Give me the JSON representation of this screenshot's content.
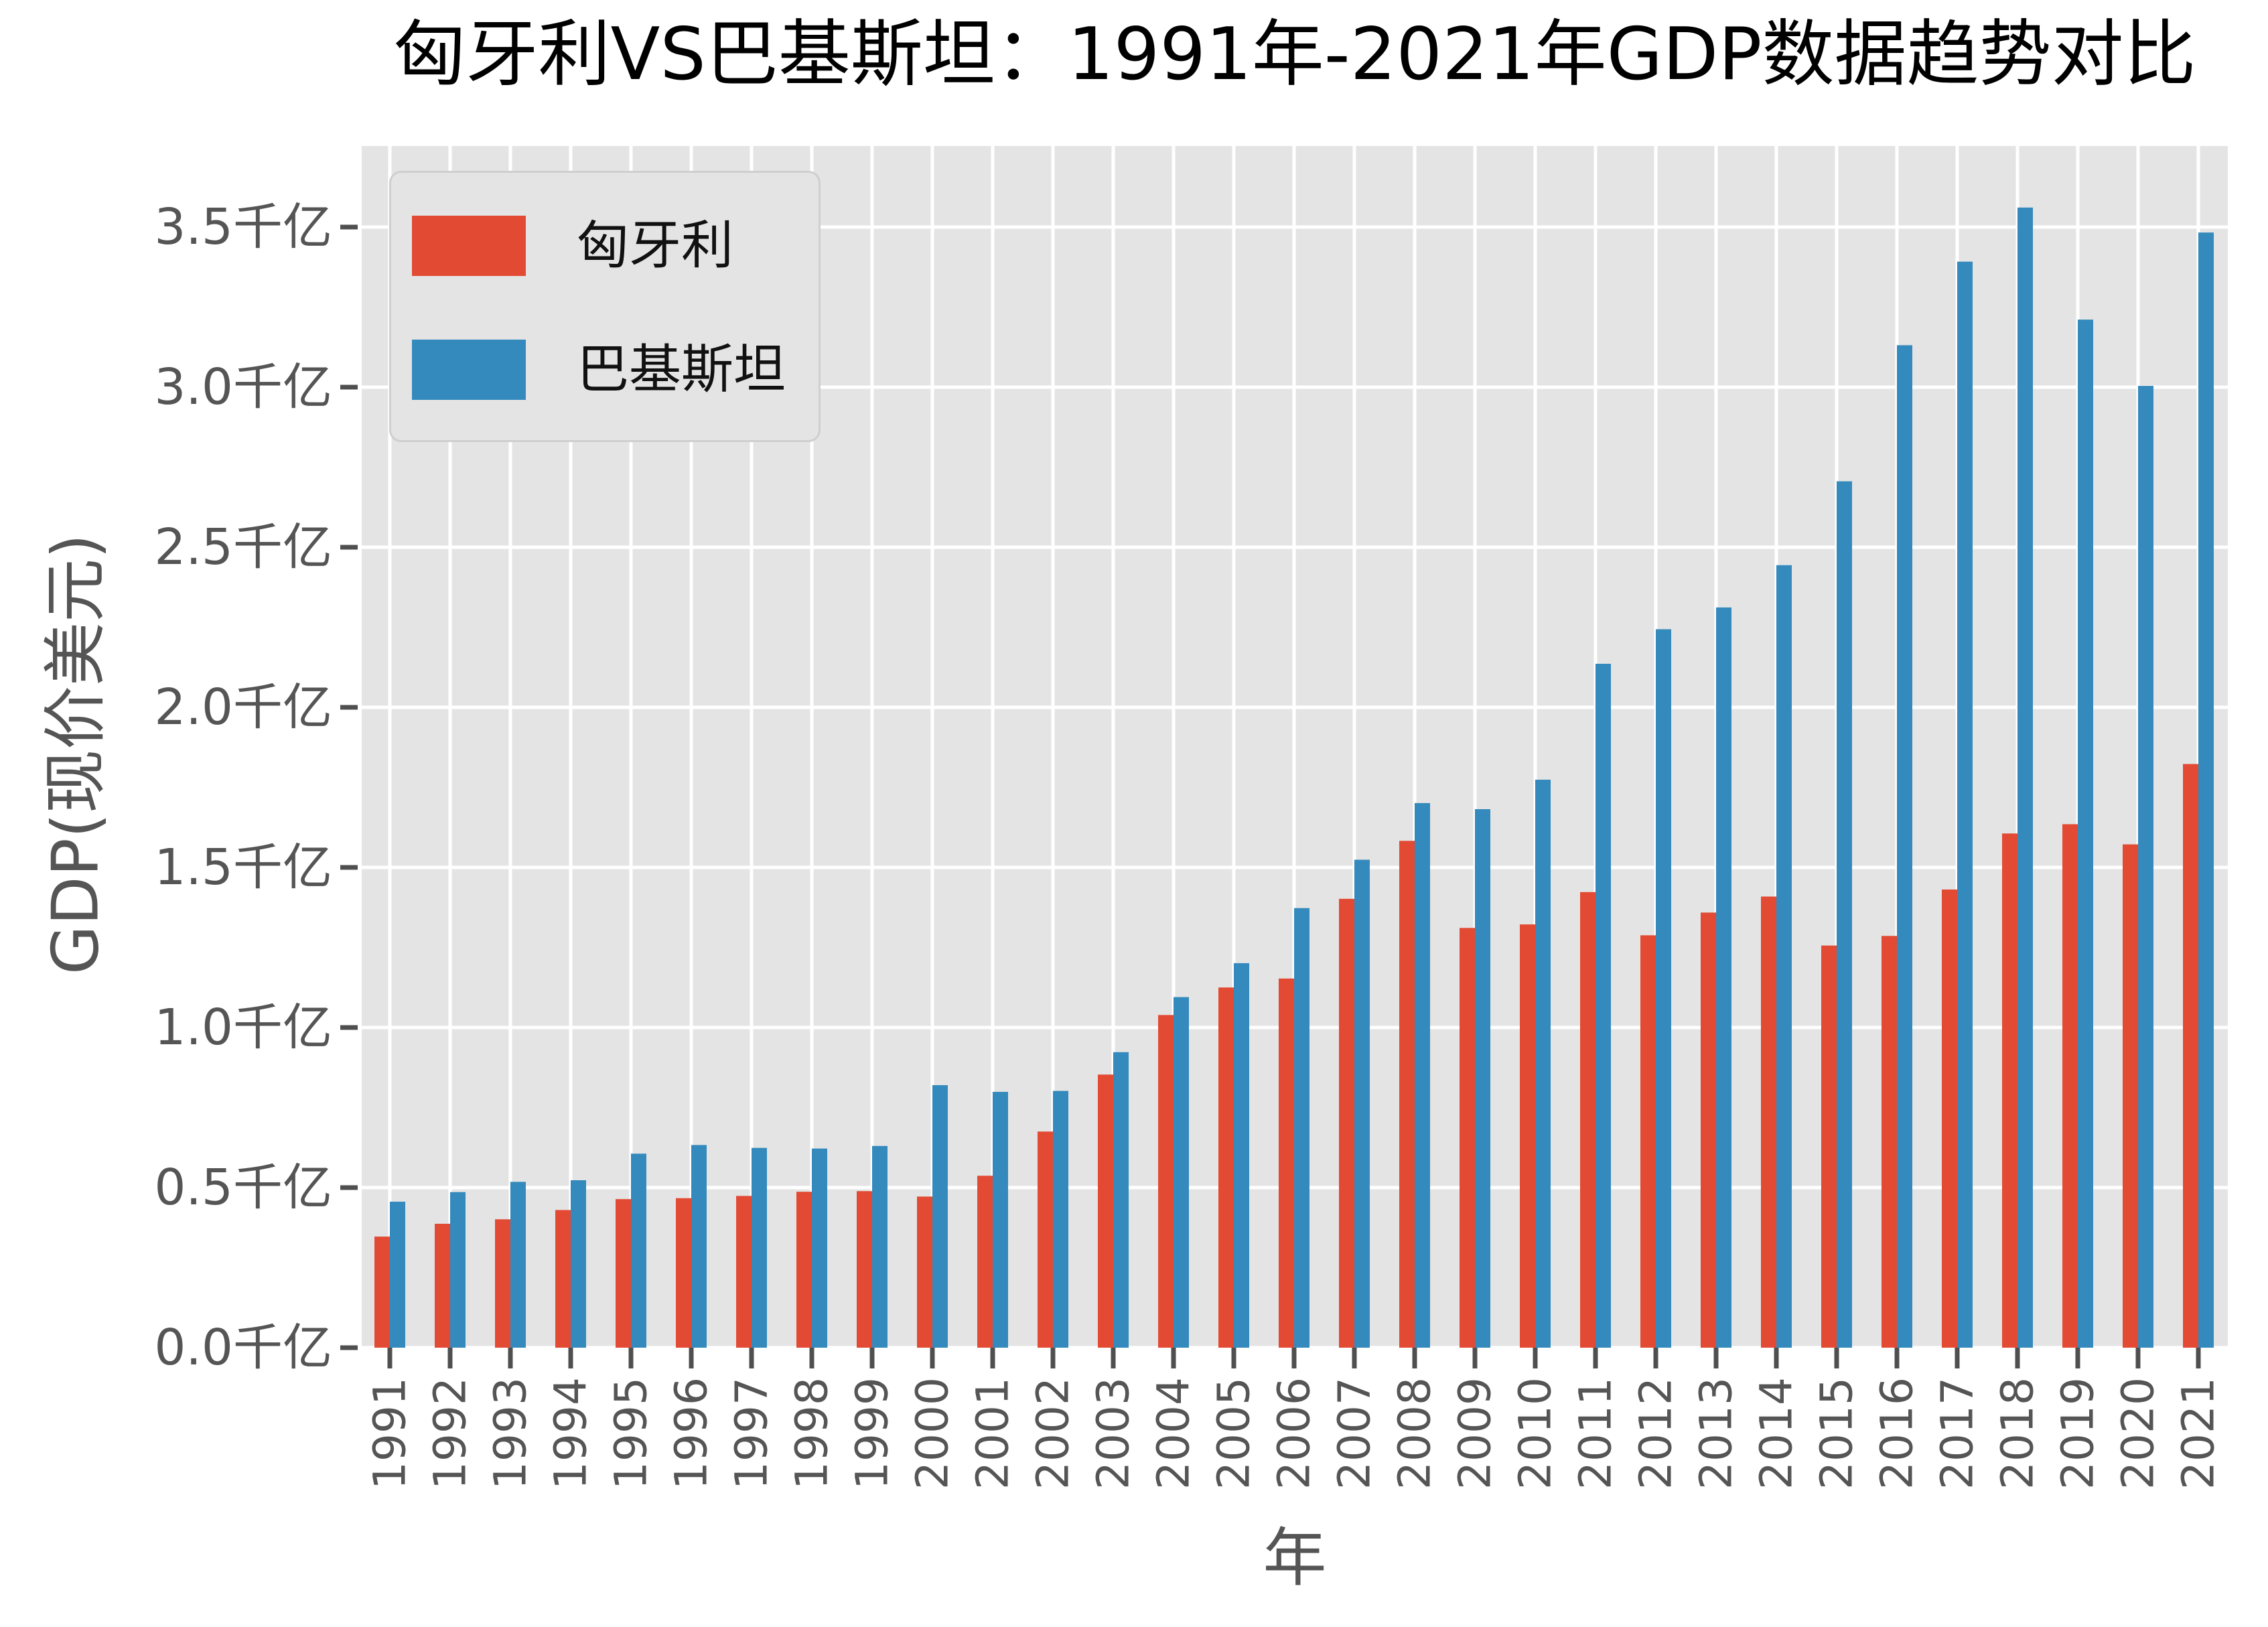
{
  "title": "匈牙利VS巴基斯坦：1991年-2021年GDP数据趋势对比",
  "axes": {
    "x_label": "年",
    "y_label": "GDP(现价美元)"
  },
  "legend": {
    "items": [
      {
        "key": "hungary",
        "label": "匈牙利",
        "color": "#E24A33"
      },
      {
        "key": "pakistan",
        "label": "巴基斯坦",
        "color": "#348ABD"
      }
    ]
  },
  "colors": {
    "plot_background": "#E4E4E4",
    "grid": "#FFFFFF",
    "tick_mark": "#4F4F4F",
    "tick_text": "#555555",
    "hungary_red": "#E24A33",
    "pakistan_blue": "#348ABD"
  },
  "chart_data": {
    "type": "bar",
    "title": "匈牙利VS巴基斯坦：1991年-2021年GDP数据趋势对比",
    "xlabel": "年",
    "ylabel": "GDP(现价美元)",
    "unit": "千亿 (现价美元)",
    "grid": true,
    "legend_position": "upper left",
    "ylim": [
      0,
      3.76
    ],
    "y_ticks": [
      0,
      0.5,
      1.0,
      1.5,
      2.0,
      2.5,
      3.0,
      3.5
    ],
    "y_tick_labels": [
      "0.0千亿",
      "0.5千亿",
      "1.0千亿",
      "1.5千亿",
      "2.0千亿",
      "2.5千亿",
      "3.0千亿",
      "3.5千亿"
    ],
    "categories": [
      1991,
      1992,
      1993,
      1994,
      1995,
      1996,
      1997,
      1998,
      1999,
      2000,
      2001,
      2002,
      2003,
      2004,
      2005,
      2006,
      2007,
      2008,
      2009,
      2010,
      2011,
      2012,
      2013,
      2014,
      2015,
      2016,
      2017,
      2018,
      2019,
      2020,
      2021
    ],
    "series": [
      {
        "key": "hungary",
        "name": "匈牙利",
        "color": "#E24A33",
        "values": [
          0.347,
          0.387,
          0.401,
          0.43,
          0.464,
          0.467,
          0.474,
          0.487,
          0.489,
          0.472,
          0.537,
          0.675,
          0.853,
          1.039,
          1.125,
          1.153,
          1.402,
          1.583,
          1.311,
          1.322,
          1.423,
          1.288,
          1.359,
          1.409,
          1.256,
          1.286,
          1.431,
          1.606,
          1.635,
          1.572,
          1.823
        ]
      },
      {
        "key": "pakistan",
        "name": "巴基斯坦",
        "color": "#348ABD",
        "values": [
          0.456,
          0.486,
          0.518,
          0.523,
          0.606,
          0.633,
          0.624,
          0.622,
          0.63,
          0.82,
          0.799,
          0.802,
          0.923,
          1.095,
          1.201,
          1.373,
          1.524,
          1.701,
          1.682,
          1.774,
          2.136,
          2.244,
          2.312,
          2.444,
          2.706,
          3.131,
          3.392,
          3.561,
          3.211,
          3.004,
          3.483
        ]
      }
    ]
  }
}
